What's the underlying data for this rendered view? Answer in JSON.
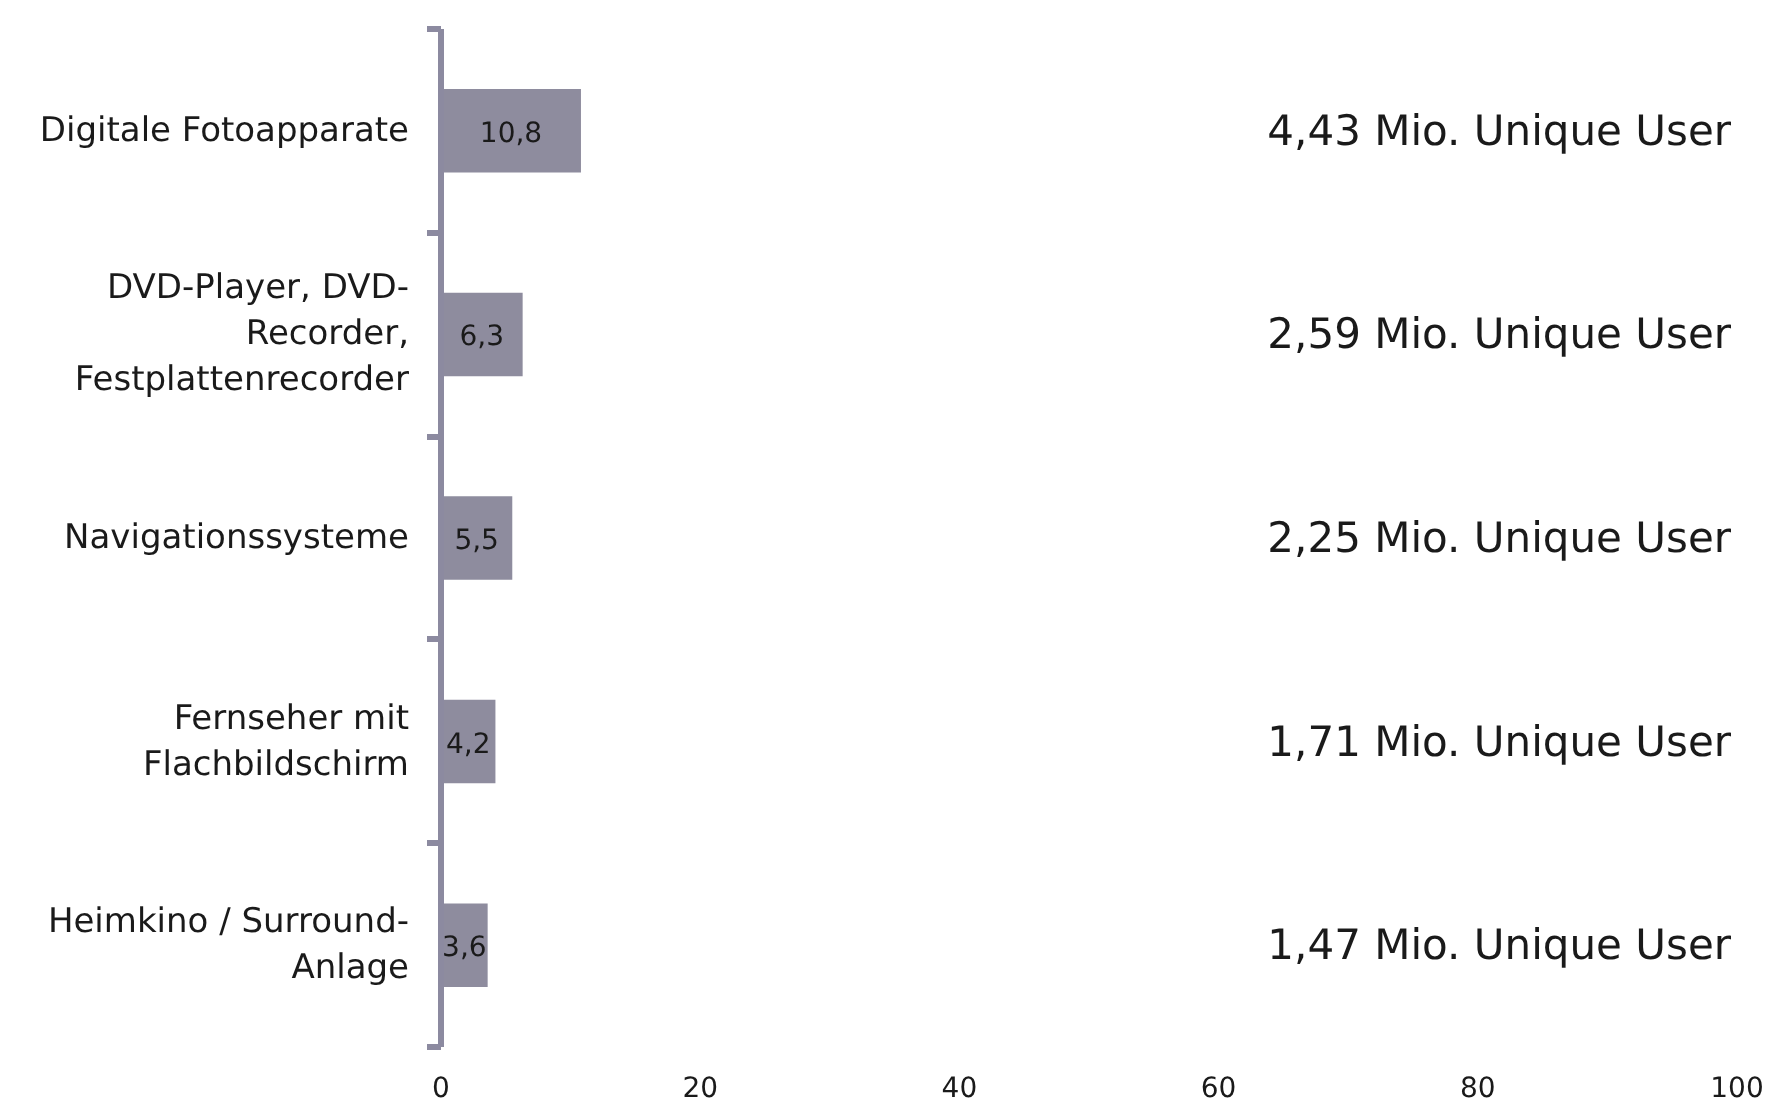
{
  "chart_data": {
    "type": "bar",
    "orientation": "horizontal",
    "categories": [
      "Digitale Fotoapparate",
      "DVD-Player, DVD-Recorder, Festplattenrecorder",
      "Navigationssysteme",
      "Fernseher mit Flachbildschirm",
      "Heimkino / Surround-Anlage"
    ],
    "values": [
      10.8,
      6.3,
      5.5,
      4.2,
      3.6
    ],
    "color": "#8e8c9e",
    "value_labels": [
      "10,8",
      "6,3",
      "5,5",
      "4,2",
      "3,6"
    ],
    "xlim": [
      0,
      100
    ],
    "xticks": [
      0,
      20,
      40,
      60,
      80,
      100
    ],
    "annotations": [
      "4,43 Mio. Unique User",
      "2,59 Mio. Unique User",
      "2,25 Mio. Unique User",
      "1,71 Mio. Unique User",
      "1,47 Mio. Unique User"
    ]
  }
}
